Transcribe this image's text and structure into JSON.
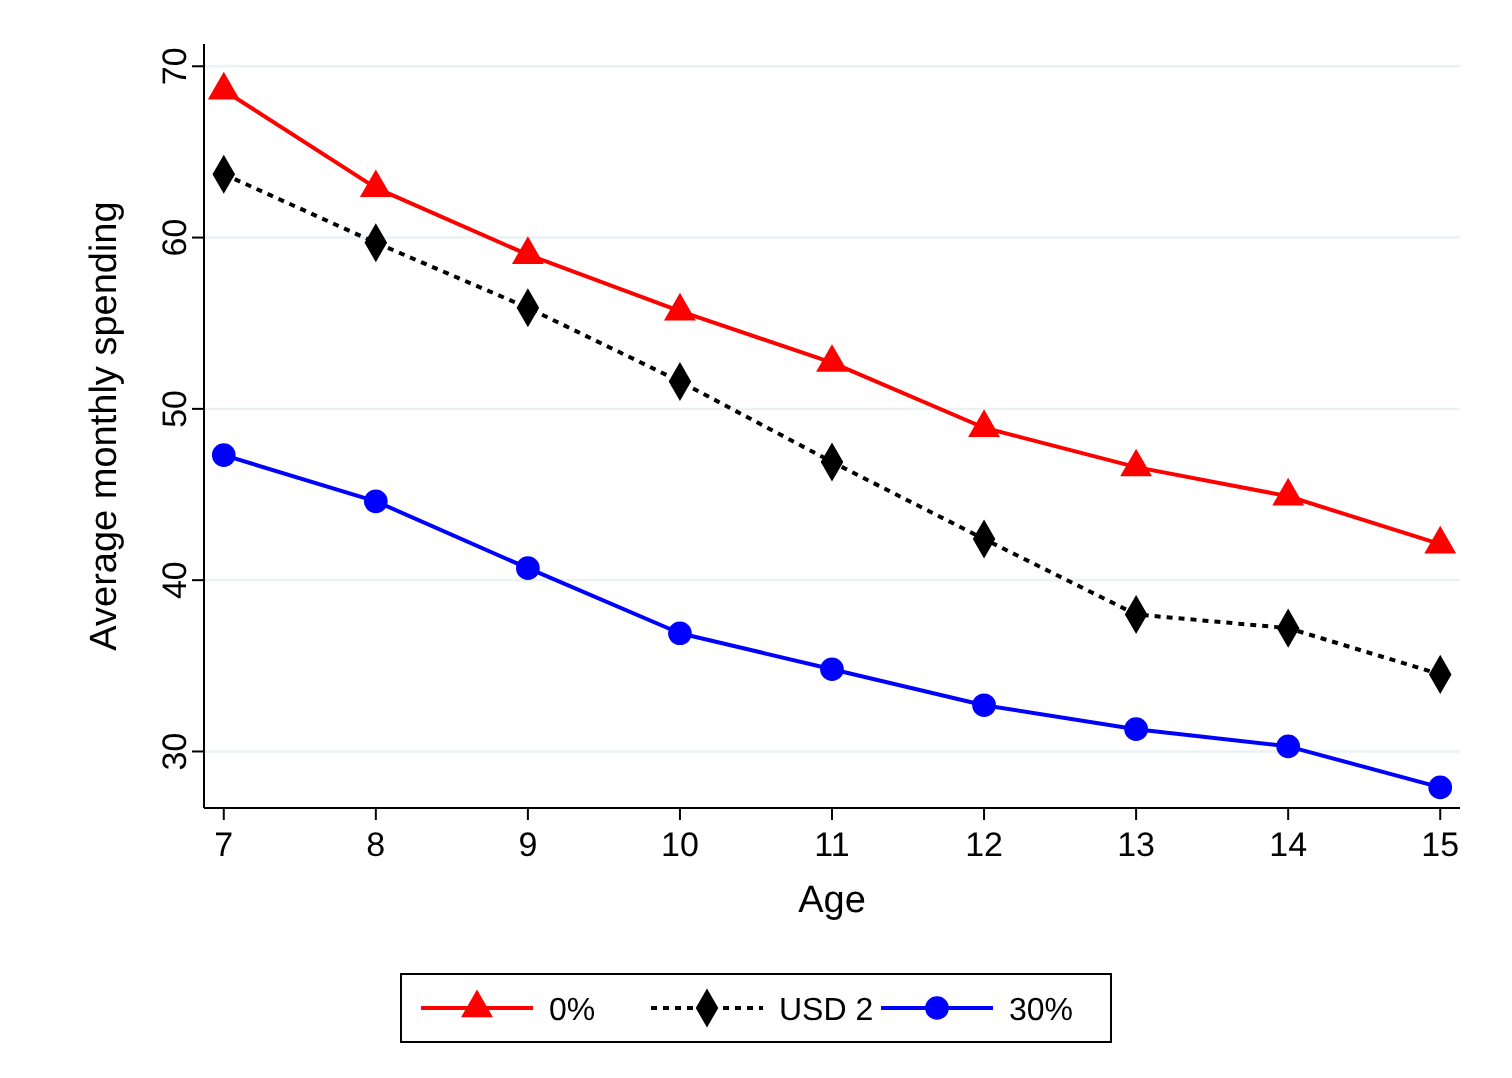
{
  "chart_data": {
    "type": "line",
    "xlabel": "Age",
    "ylabel": "Average monthly spending",
    "x": [
      7,
      8,
      9,
      10,
      11,
      12,
      13,
      14,
      15
    ],
    "xlim": [
      6.87,
      15.13
    ],
    "xticks": [
      7,
      8,
      9,
      10,
      11,
      12,
      13,
      14,
      15
    ],
    "ylim": [
      26.7,
      71.3
    ],
    "yticks": [
      30,
      40,
      50,
      60,
      70
    ],
    "grid": "y",
    "legend": "bottom",
    "series": [
      {
        "name": "0%",
        "color": "#ff0000",
        "marker": "triangle",
        "line_style": "solid",
        "values": [
          68.6,
          62.9,
          59.0,
          55.7,
          52.7,
          48.9,
          46.6,
          44.9,
          42.1
        ]
      },
      {
        "name": "USD 2",
        "color": "#000000",
        "marker": "diamond",
        "line_style": "dotted",
        "values": [
          63.7,
          59.7,
          55.9,
          51.6,
          46.9,
          42.4,
          38.0,
          37.2,
          34.5
        ]
      },
      {
        "name": "30%",
        "color": "#0000ff",
        "marker": "circle",
        "line_style": "solid",
        "values": [
          47.3,
          44.6,
          40.7,
          36.9,
          34.8,
          32.7,
          31.3,
          30.3,
          27.9
        ]
      }
    ]
  }
}
